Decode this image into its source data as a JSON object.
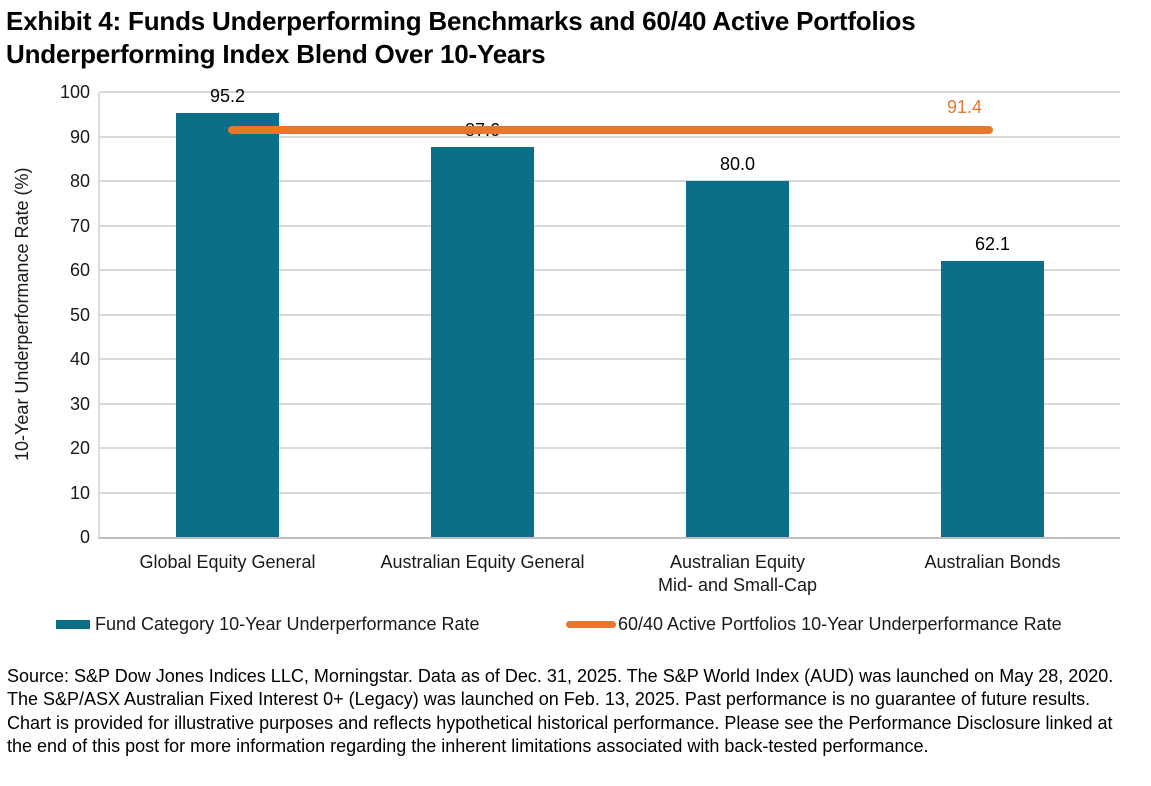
{
  "title": "Exhibit 4: Funds Underperforming Benchmarks and 60/40 Active Portfolios\nUnderperforming Index Blend Over 10-Years",
  "chart_data": {
    "type": "bar",
    "title": "Exhibit 4: Funds Underperforming Benchmarks and 60/40 Active Portfolios Underperforming Index Blend Over 10-Years",
    "categories": [
      "Global Equity General",
      "Australian Equity General",
      "Australian Equity\nMid- and Small-Cap",
      "Australian Bonds"
    ],
    "series": [
      {
        "name": "Fund Category 10-Year Underperformance Rate",
        "type": "bar",
        "color": "#0C6F88",
        "values": [
          95.2,
          87.6,
          80.0,
          62.1
        ]
      },
      {
        "name": "60/40 Active Portfolios 10-Year Underperformance Rate",
        "type": "line",
        "color": "#E8772E",
        "values": [
          91.4,
          91.4,
          91.4,
          91.4
        ],
        "data_label": "91.4"
      }
    ],
    "xlabel": "",
    "ylabel": "10-Year Underperformance Rate (%)",
    "ylim": [
      0,
      100
    ],
    "ytick_step": 10,
    "grid": true,
    "legend_position": "bottom"
  },
  "footer": {
    "source_text": "Source: S&P Dow Jones Indices LLC, Morningstar. Data as of Dec. 31, 2025. The S&P World Index (AUD) was launched on May 28, 2020. The S&P/ASX Australian Fixed Interest 0+ (Legacy) was launched on Feb. 13, 2025. Past performance is no guarantee of future results. Chart is provided for illustrative purposes and reflects hypothetical historical performance. Please see the Performance Disclosure linked at the end of this post for more information regarding the inherent limitations associated with back-tested performance."
  },
  "colors": {
    "bar": "#0C6F88",
    "line": "#E8772E",
    "gridline": "#D9D9D9",
    "axis": "#BFBFBF",
    "text": "#000000"
  }
}
